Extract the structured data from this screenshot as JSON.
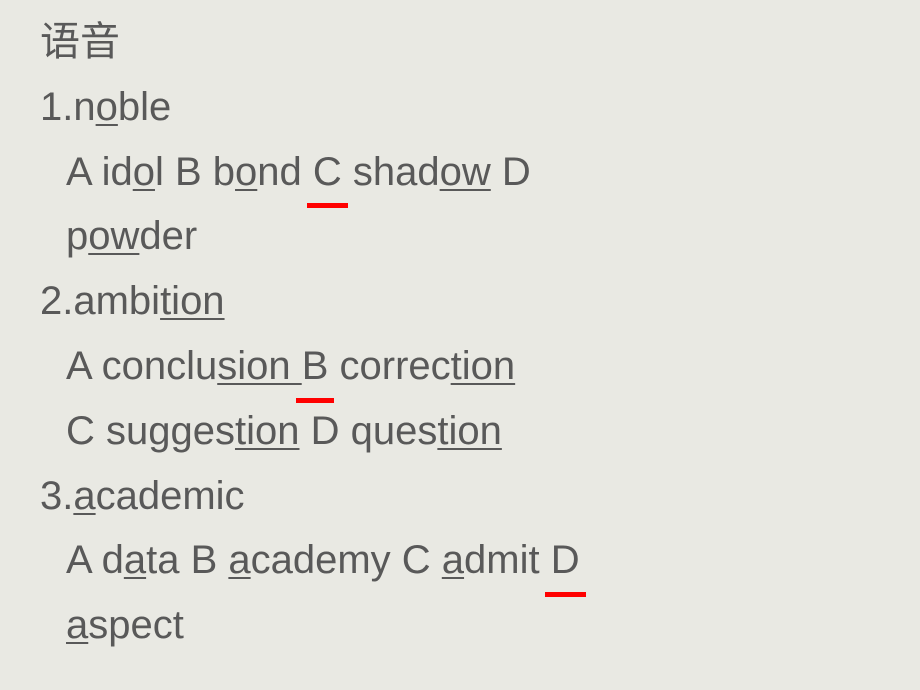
{
  "colors": {
    "background": "#e9e9e3",
    "text": "#595959",
    "answer_underline": "#ff0000"
  },
  "typography": {
    "font_family": "Microsoft YaHei / Arial",
    "font_size_pt": 30,
    "line_height": 1.62
  },
  "title": "语音",
  "questions": [
    {
      "number": "1.",
      "stem": [
        {
          "t": "n",
          "u": false
        },
        {
          "t": "o",
          "u": true
        },
        {
          "t": "ble",
          "u": false
        }
      ],
      "option_lines": [
        [
          {
            "k": "label",
            "t": "A "
          },
          {
            "k": "plain",
            "t": "id"
          },
          {
            "k": "ul",
            "t": "o"
          },
          {
            "k": "plain",
            "t": "l  "
          },
          {
            "k": "label",
            "t": "B "
          },
          {
            "k": "plain",
            "t": "b"
          },
          {
            "k": "ul",
            "t": "o"
          },
          {
            "k": "plain",
            "t": "nd  "
          },
          {
            "k": "answer",
            "t": "C"
          },
          {
            "k": "plain",
            "t": " shad"
          },
          {
            "k": "ul",
            "t": "ow"
          },
          {
            "k": "plain",
            "t": " "
          },
          {
            "k": "label",
            "t": "D"
          }
        ],
        [
          {
            "k": "plain",
            "t": "p"
          },
          {
            "k": "ul",
            "t": "ow"
          },
          {
            "k": "plain",
            "t": "der"
          }
        ]
      ]
    },
    {
      "number": "2.",
      "stem": [
        {
          "t": "ambi",
          "u": false
        },
        {
          "t": "tion",
          "u": true
        }
      ],
      "option_lines": [
        [
          {
            "k": "label",
            "t": "A "
          },
          {
            "k": "plain",
            "t": "conclu"
          },
          {
            "k": "ul",
            "t": "sion "
          },
          {
            "k": "plain",
            "t": "  "
          },
          {
            "k": "answer",
            "t": "B"
          },
          {
            "k": "plain",
            "t": " correc"
          },
          {
            "k": "ul",
            "t": "tion"
          }
        ],
        [
          {
            "k": "label",
            "t": "C  "
          },
          {
            "k": "plain",
            "t": "sugges"
          },
          {
            "k": "ul",
            "t": "tion"
          },
          {
            "k": "plain",
            "t": "  "
          },
          {
            "k": "label",
            "t": "D  "
          },
          {
            "k": "plain",
            "t": "ques"
          },
          {
            "k": "ul",
            "t": "tion"
          }
        ]
      ]
    },
    {
      "number": "3.",
      "stem": [
        {
          "t": "a",
          "u": true
        },
        {
          "t": "cademic",
          "u": false
        }
      ],
      "option_lines": [
        [
          {
            "k": "label",
            "t": "A "
          },
          {
            "k": "plain",
            "t": "d"
          },
          {
            "k": "ul",
            "t": "a"
          },
          {
            "k": "plain",
            "t": "ta  "
          },
          {
            "k": "label",
            "t": "B  "
          },
          {
            "k": "ul",
            "t": "a"
          },
          {
            "k": "plain",
            "t": "cademy  "
          },
          {
            "k": "label",
            "t": "C "
          },
          {
            "k": "ul",
            "t": "a"
          },
          {
            "k": "plain",
            "t": "dmit  "
          },
          {
            "k": "answer",
            "t": "D"
          }
        ],
        [
          {
            "k": "ul",
            "t": "a"
          },
          {
            "k": "plain",
            "t": "spect"
          }
        ]
      ]
    }
  ]
}
